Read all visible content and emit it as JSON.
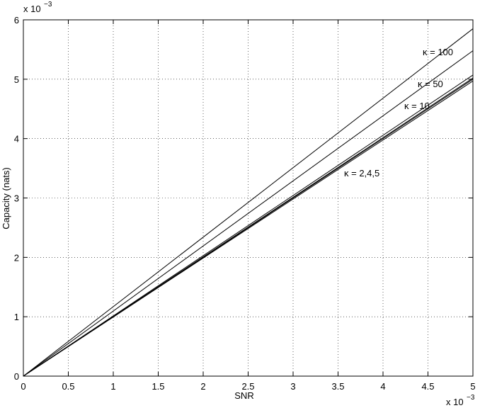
{
  "chart_data": {
    "type": "line",
    "xlabel": "SNR",
    "ylabel": "Capacity (nats)",
    "x_multiplier": "x 10",
    "x_multiplier_exp": "−3",
    "y_multiplier": "x 10",
    "y_multiplier_exp": "−3",
    "x": [
      0,
      5
    ],
    "series": [
      {
        "color": "#000000",
        "values": [
          0,
          5.85
        ]
      },
      {
        "color": "#000000",
        "values": [
          0,
          5.48
        ]
      },
      {
        "color": "#000000",
        "values": [
          0,
          5.07
        ]
      },
      {
        "color": "#000000",
        "values": [
          0,
          5.02
        ]
      },
      {
        "color": "#000000",
        "values": [
          0,
          5.0
        ]
      },
      {
        "color": "#000000",
        "values": [
          0,
          4.97
        ]
      }
    ],
    "annotations": [
      "κ = 100",
      "κ = 50",
      "κ = 10",
      "κ = 2,4,5"
    ],
    "xlim": [
      0,
      5
    ],
    "xticks": [
      0,
      0.5,
      1,
      1.5,
      2,
      2.5,
      3,
      3.5,
      4,
      4.5,
      5
    ],
    "ylim": [
      0,
      6
    ],
    "yticks": [
      0,
      1,
      2,
      3,
      4,
      5,
      6
    ],
    "grid": true
  }
}
